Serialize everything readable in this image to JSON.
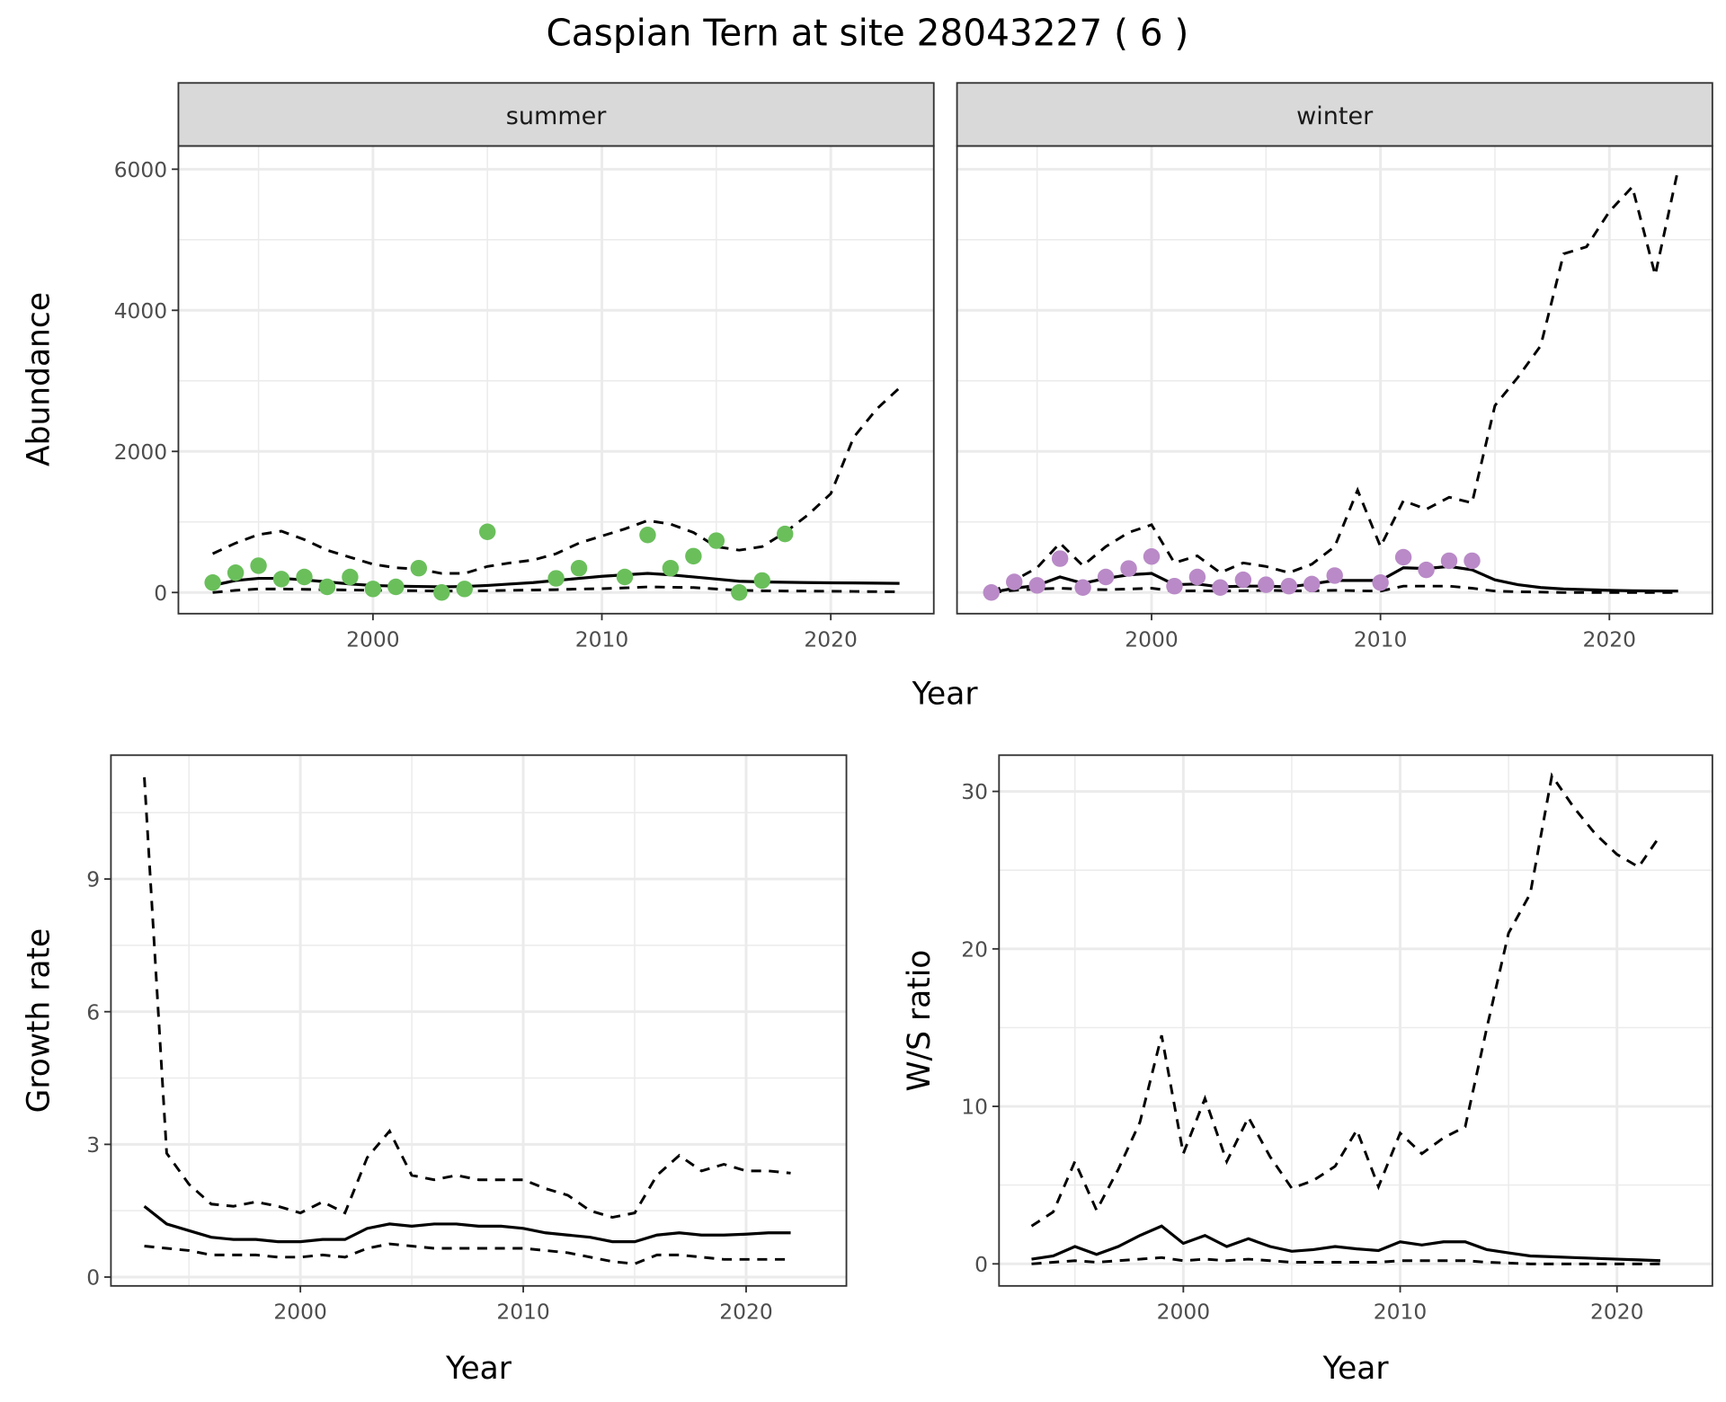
{
  "title": "Caspian Tern at site 28043227 ( 6 )",
  "colors": {
    "summer": "#6abf5b",
    "winter": "#b98ac7",
    "line": "#000000",
    "grid": "#ebebeb",
    "strip": "#d9d9d9"
  },
  "abundance_xlabel": "Year",
  "chart_data": [
    {
      "id": "summer",
      "type": "line",
      "strip": "summer",
      "ylabel": "Abundance",
      "xlabel": "",
      "xlim": [
        1991.5,
        2024.5
      ],
      "ylim": [
        -300,
        6330
      ],
      "xticks": [
        2000,
        2010,
        2020
      ],
      "xminor": [
        1995,
        2005,
        2015
      ],
      "yticks": [
        0,
        2000,
        4000,
        6000
      ],
      "yminor": [
        1000,
        3000,
        5000
      ],
      "show_yticks": true,
      "grid": true,
      "points": {
        "x": [
          1993,
          1994,
          1995,
          1996,
          1997,
          1998,
          1999,
          2000,
          2001,
          2002,
          2003,
          2004,
          2005,
          2008,
          2009,
          2011,
          2012,
          2013,
          2014,
          2015,
          2016,
          2017,
          2018
        ],
        "y": [
          140,
          280,
          380,
          190,
          220,
          80,
          220,
          50,
          80,
          345,
          0,
          50,
          860,
          200,
          345,
          220,
          815,
          345,
          515,
          735,
          0,
          170,
          830
        ]
      },
      "years": [
        1993,
        1994,
        1995,
        1996,
        1997,
        1998,
        1999,
        2000,
        2001,
        2002,
        2003,
        2004,
        2005,
        2006,
        2007,
        2008,
        2009,
        2010,
        2011,
        2012,
        2013,
        2014,
        2015,
        2016,
        2017,
        2018,
        2019,
        2020,
        2021,
        2022,
        2023
      ],
      "mean": [
        100,
        170,
        200,
        200,
        180,
        150,
        120,
        100,
        90,
        85,
        80,
        85,
        100,
        120,
        140,
        170,
        200,
        230,
        250,
        270,
        250,
        220,
        190,
        160,
        150,
        145,
        140,
        138,
        135,
        132,
        130
      ],
      "upper": [
        550,
        700,
        820,
        870,
        750,
        600,
        500,
        400,
        350,
        330,
        270,
        270,
        370,
        420,
        460,
        550,
        700,
        800,
        900,
        1020,
        970,
        850,
        650,
        600,
        650,
        850,
        1100,
        1400,
        2200,
        2600,
        2900
      ],
      "lower": [
        0,
        30,
        50,
        50,
        45,
        40,
        35,
        30,
        28,
        25,
        20,
        22,
        25,
        30,
        35,
        40,
        50,
        55,
        65,
        80,
        75,
        70,
        50,
        30,
        25,
        22,
        20,
        18,
        15,
        12,
        10
      ]
    },
    {
      "id": "winter",
      "type": "line",
      "strip": "winter",
      "ylabel": "",
      "xlabel": "",
      "xlim": [
        1991.5,
        2024.5
      ],
      "ylim": [
        -300,
        6330
      ],
      "xticks": [
        2000,
        2010,
        2020
      ],
      "xminor": [
        1995,
        2005,
        2015
      ],
      "yticks": [
        0,
        2000,
        4000,
        6000
      ],
      "yminor": [
        1000,
        3000,
        5000
      ],
      "show_yticks": false,
      "grid": true,
      "points": {
        "x": [
          1993,
          1994,
          1995,
          1996,
          1997,
          1998,
          1999,
          2000,
          2001,
          2002,
          2003,
          2004,
          2005,
          2006,
          2007,
          2008,
          2010,
          2011,
          2012,
          2013,
          2014
        ],
        "y": [
          0,
          150,
          100,
          480,
          70,
          220,
          340,
          510,
          90,
          220,
          70,
          180,
          110,
          90,
          120,
          240,
          140,
          500,
          320,
          450,
          450
        ]
      },
      "years": [
        1993,
        1994,
        1995,
        1996,
        1997,
        1998,
        1999,
        2000,
        2001,
        2002,
        2003,
        2004,
        2005,
        2006,
        2007,
        2008,
        2009,
        2010,
        2011,
        2012,
        2013,
        2014,
        2015,
        2016,
        2017,
        2018,
        2019,
        2020,
        2021,
        2022,
        2023
      ],
      "mean": [
        0,
        60,
        100,
        220,
        130,
        200,
        250,
        270,
        110,
        120,
        80,
        90,
        90,
        80,
        120,
        170,
        170,
        170,
        350,
        340,
        370,
        320,
        180,
        110,
        70,
        50,
        40,
        30,
        25,
        22,
        20
      ],
      "upper": [
        0,
        170,
        350,
        700,
        380,
        650,
        850,
        960,
        420,
        520,
        280,
        420,
        370,
        280,
        400,
        650,
        1450,
        650,
        1300,
        1180,
        1350,
        1270,
        2650,
        3050,
        3500,
        4800,
        4900,
        5400,
        5750,
        4500,
        6000
      ],
      "lower": [
        0,
        30,
        50,
        60,
        45,
        40,
        50,
        60,
        20,
        25,
        20,
        25,
        30,
        25,
        25,
        30,
        25,
        20,
        90,
        90,
        90,
        60,
        20,
        10,
        5,
        0,
        0,
        0,
        0,
        0,
        0
      ]
    },
    {
      "id": "growth",
      "type": "line",
      "ylabel": "Growth rate",
      "xlabel": "Year",
      "xlim": [
        1991.5,
        2024.5
      ],
      "ylim": [
        -0.2,
        11.8
      ],
      "xticks": [
        2000,
        2010,
        2020
      ],
      "xminor": [
        1995,
        2005,
        2015
      ],
      "yticks": [
        0,
        3,
        6,
        9
      ],
      "yminor": [
        1.5,
        4.5,
        7.5,
        10.5
      ],
      "show_yticks": true,
      "grid": true,
      "years": [
        1993,
        1994,
        1995,
        1996,
        1997,
        1998,
        1999,
        2000,
        2001,
        2002,
        2003,
        2004,
        2005,
        2006,
        2007,
        2008,
        2009,
        2010,
        2011,
        2012,
        2013,
        2014,
        2015,
        2016,
        2017,
        2018,
        2019,
        2020,
        2021,
        2022
      ],
      "mean": [
        1.6,
        1.2,
        1.05,
        0.9,
        0.85,
        0.85,
        0.8,
        0.8,
        0.85,
        0.85,
        1.1,
        1.2,
        1.15,
        1.2,
        1.2,
        1.15,
        1.15,
        1.1,
        1.0,
        0.95,
        0.9,
        0.8,
        0.8,
        0.95,
        1.0,
        0.95,
        0.95,
        0.97,
        1.0,
        1.0
      ],
      "upper": [
        11.3,
        2.8,
        2.1,
        1.65,
        1.6,
        1.7,
        1.6,
        1.45,
        1.7,
        1.45,
        2.7,
        3.3,
        2.3,
        2.2,
        2.3,
        2.2,
        2.2,
        2.2,
        2.0,
        1.85,
        1.5,
        1.35,
        1.45,
        2.3,
        2.75,
        2.4,
        2.55,
        2.4,
        2.4,
        2.35
      ],
      "lower": [
        0.7,
        0.65,
        0.6,
        0.5,
        0.5,
        0.5,
        0.45,
        0.45,
        0.5,
        0.45,
        0.65,
        0.75,
        0.7,
        0.65,
        0.65,
        0.65,
        0.65,
        0.65,
        0.6,
        0.55,
        0.45,
        0.35,
        0.3,
        0.5,
        0.5,
        0.45,
        0.4,
        0.4,
        0.4,
        0.4
      ]
    },
    {
      "id": "ws",
      "type": "line",
      "ylabel": "W/S ratio",
      "xlabel": "Year",
      "xlim": [
        1991.5,
        2024.4
      ],
      "ylim": [
        -1.4,
        32.3
      ],
      "xticks": [
        2000,
        2010,
        2020
      ],
      "xminor": [
        1995,
        2005,
        2015
      ],
      "yticks": [
        0,
        10,
        20,
        30
      ],
      "yminor": [
        5,
        15,
        25
      ],
      "show_yticks": true,
      "grid": true,
      "years": [
        1993,
        1994,
        1995,
        1996,
        1997,
        1998,
        1999,
        2000,
        2001,
        2002,
        2003,
        2004,
        2005,
        2006,
        2007,
        2008,
        2009,
        2010,
        2011,
        2012,
        2013,
        2014,
        2015,
        2016,
        2017,
        2018,
        2019,
        2020,
        2021,
        2022
      ],
      "mean": [
        0.3,
        0.5,
        1.1,
        0.6,
        1.1,
        1.8,
        2.4,
        1.3,
        1.8,
        1.1,
        1.6,
        1.1,
        0.8,
        0.9,
        1.1,
        0.95,
        0.85,
        1.4,
        1.2,
        1.4,
        1.4,
        0.9,
        0.7,
        0.5,
        0.45,
        0.4,
        0.35,
        0.3,
        0.25,
        0.2
      ],
      "upper": [
        2.4,
        3.3,
        6.5,
        3.4,
        6.0,
        9.0,
        14.5,
        7.0,
        10.5,
        6.5,
        9.3,
        6.8,
        4.8,
        5.3,
        6.2,
        8.5,
        4.9,
        8.3,
        7.0,
        8.0,
        8.7,
        15.0,
        21.0,
        23.5,
        31.0,
        29.0,
        27.3,
        26.0,
        25.2,
        27.2
      ],
      "lower": [
        0,
        0.1,
        0.2,
        0.1,
        0.2,
        0.3,
        0.4,
        0.2,
        0.3,
        0.2,
        0.3,
        0.2,
        0.1,
        0.1,
        0.1,
        0.1,
        0.1,
        0.2,
        0.2,
        0.2,
        0.2,
        0.1,
        0.05,
        0,
        0,
        0,
        0,
        0,
        0,
        0
      ]
    }
  ]
}
